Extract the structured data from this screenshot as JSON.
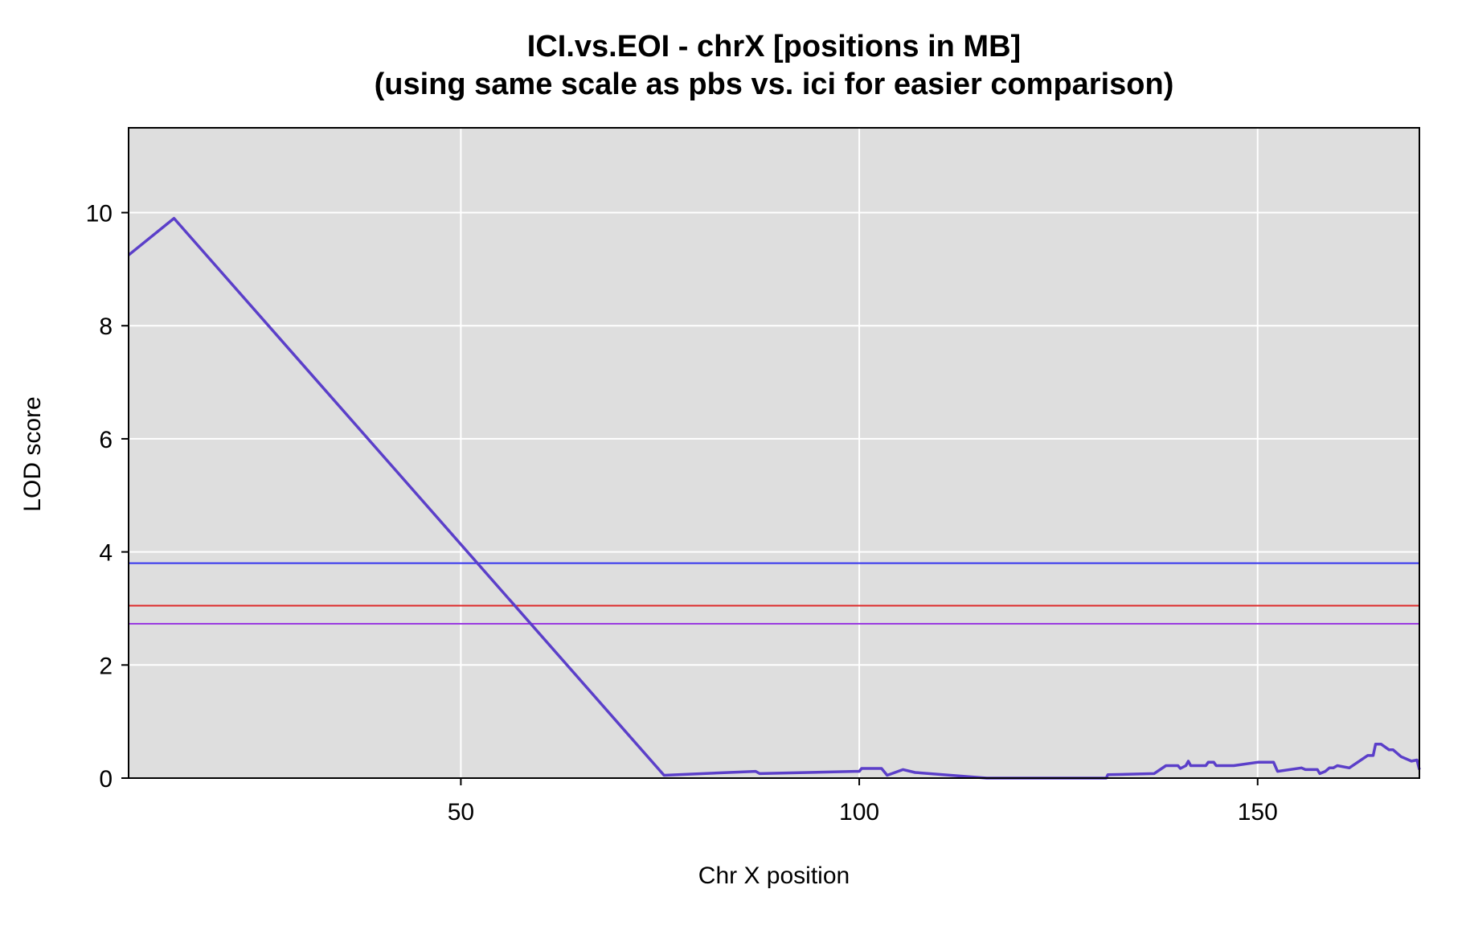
{
  "chart_data": {
    "type": "line",
    "title": "ICI.vs.EOI - chrX [positions in MB]",
    "subtitle": "(using same scale as pbs vs. ici for easier comparison)",
    "xlabel": "Chr X position",
    "ylabel": "LOD score",
    "xlim": [
      8.3,
      170.3
    ],
    "ylim": [
      0,
      11.5
    ],
    "xticks": [
      50,
      100,
      150
    ],
    "yticks": [
      0,
      2,
      4,
      6,
      8,
      10
    ],
    "grid": true,
    "legend": "none",
    "colors": {
      "panel_background": "#dedede",
      "grid": "#ffffff",
      "series": "#5b3fc9"
    },
    "series": [
      {
        "color": "#5b3fc9",
        "x": [
          8.3,
          14.0,
          75.5,
          87.0,
          87.5,
          99.5,
          100.0,
          100.3,
          101.0,
          102.8,
          103.5,
          105.5,
          107.0,
          116.0,
          131.0,
          131.2,
          137.0,
          138.5,
          140.0,
          140.3,
          141.0,
          141.3,
          141.6,
          143.5,
          143.8,
          144.5,
          144.8,
          147.0,
          150.0,
          152.0,
          152.5,
          155.5,
          156.0,
          157.5,
          157.8,
          158.5,
          159.0,
          159.5,
          160.0,
          161.5,
          163.8,
          164.5,
          164.8,
          165.5,
          166.5,
          167.0,
          168.0,
          169.3,
          170.0,
          170.3
        ],
        "y": [
          9.25,
          9.9,
          0.05,
          0.12,
          0.08,
          0.12,
          0.12,
          0.17,
          0.17,
          0.17,
          0.05,
          0.15,
          0.1,
          0.0,
          0.0,
          0.06,
          0.08,
          0.22,
          0.22,
          0.17,
          0.22,
          0.3,
          0.22,
          0.22,
          0.28,
          0.28,
          0.22,
          0.22,
          0.28,
          0.28,
          0.12,
          0.18,
          0.15,
          0.15,
          0.08,
          0.12,
          0.18,
          0.18,
          0.22,
          0.18,
          0.4,
          0.4,
          0.6,
          0.6,
          0.5,
          0.5,
          0.38,
          0.3,
          0.32,
          0.15
        ]
      }
    ],
    "hlines": [
      {
        "y": 3.8,
        "color": "#3333ee"
      },
      {
        "y": 3.05,
        "color": "#dd2a2a"
      },
      {
        "y": 2.73,
        "color": "#9a3be0"
      }
    ]
  }
}
